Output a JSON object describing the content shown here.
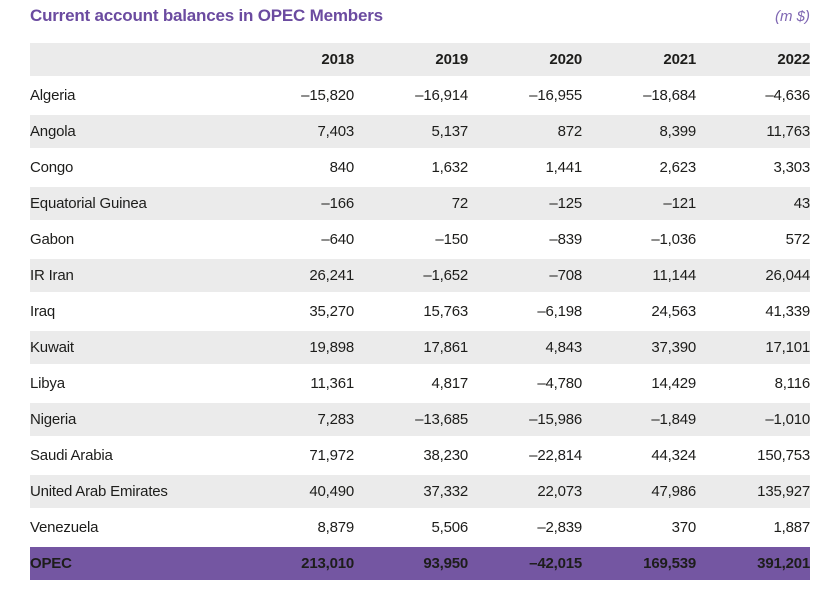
{
  "page": {
    "title": "Current account balances in OPEC Members",
    "unit_label": "(m $)"
  },
  "colors": {
    "title_purple": "#6b4ba0",
    "year_header_purple": "#5f4b96",
    "total_row_bg": "#7456a2",
    "stripe_gray": "#ebebeb",
    "body_text": "#1d1d1b"
  },
  "table": {
    "years": [
      "2018",
      "2019",
      "2020",
      "2021",
      "2022"
    ],
    "rows": [
      {
        "country": "Algeria",
        "values": [
          "–15,820",
          "–16,914",
          "–16,955",
          "–18,684",
          "–4,636"
        ]
      },
      {
        "country": "Angola",
        "values": [
          "7,403",
          "5,137",
          "872",
          "8,399",
          "11,763"
        ]
      },
      {
        "country": "Congo",
        "values": [
          "840",
          "1,632",
          "1,441",
          "2,623",
          "3,303"
        ]
      },
      {
        "country": "Equatorial Guinea",
        "values": [
          "–166",
          "72",
          "–125",
          "–121",
          "43"
        ]
      },
      {
        "country": "Gabon",
        "values": [
          "–640",
          "–150",
          "–839",
          "–1,036",
          "572"
        ]
      },
      {
        "country": "IR Iran",
        "values": [
          "26,241",
          "–1,652",
          "–708",
          "11,144",
          "26,044"
        ]
      },
      {
        "country": "Iraq",
        "values": [
          "35,270",
          "15,763",
          "–6,198",
          "24,563",
          "41,339"
        ]
      },
      {
        "country": "Kuwait",
        "values": [
          "19,898",
          "17,861",
          "4,843",
          "37,390",
          "17,101"
        ]
      },
      {
        "country": "Libya",
        "values": [
          "11,361",
          "4,817",
          "–4,780",
          "14,429",
          "8,116"
        ]
      },
      {
        "country": "Nigeria",
        "values": [
          "7,283",
          "–13,685",
          "–15,986",
          "–1,849",
          "–1,010"
        ]
      },
      {
        "country": "Saudi Arabia",
        "values": [
          "71,972",
          "38,230",
          "–22,814",
          "44,324",
          "150,753"
        ]
      },
      {
        "country": "United Arab Emirates",
        "values": [
          "40,490",
          "37,332",
          "22,073",
          "47,986",
          "135,927"
        ]
      },
      {
        "country": "Venezuela",
        "values": [
          "8,879",
          "5,506",
          "–2,839",
          "370",
          "1,887"
        ]
      }
    ],
    "total": {
      "label": "OPEC",
      "values": [
        "213,010",
        "93,950",
        "–42,015",
        "169,539",
        "391,201"
      ]
    }
  },
  "chart_data": {
    "type": "table",
    "title": "Current account balances in OPEC Members",
    "unit": "m $",
    "columns": [
      2018,
      2019,
      2020,
      2021,
      2022
    ],
    "rows": [
      {
        "name": "Algeria",
        "values": [
          -15820,
          -16914,
          -16955,
          -18684,
          -4636
        ]
      },
      {
        "name": "Angola",
        "values": [
          7403,
          5137,
          872,
          8399,
          11763
        ]
      },
      {
        "name": "Congo",
        "values": [
          840,
          1632,
          1441,
          2623,
          3303
        ]
      },
      {
        "name": "Equatorial Guinea",
        "values": [
          -166,
          72,
          -125,
          -121,
          43
        ]
      },
      {
        "name": "Gabon",
        "values": [
          -640,
          -150,
          -839,
          -1036,
          572
        ]
      },
      {
        "name": "IR Iran",
        "values": [
          26241,
          -1652,
          -708,
          11144,
          26044
        ]
      },
      {
        "name": "Iraq",
        "values": [
          35270,
          15763,
          -6198,
          24563,
          41339
        ]
      },
      {
        "name": "Kuwait",
        "values": [
          19898,
          17861,
          4843,
          37390,
          17101
        ]
      },
      {
        "name": "Libya",
        "values": [
          11361,
          4817,
          -4780,
          14429,
          8116
        ]
      },
      {
        "name": "Nigeria",
        "values": [
          7283,
          -13685,
          -15986,
          -1849,
          -1010
        ]
      },
      {
        "name": "Saudi Arabia",
        "values": [
          71972,
          38230,
          -22814,
          44324,
          150753
        ]
      },
      {
        "name": "United Arab Emirates",
        "values": [
          40490,
          37332,
          22073,
          47986,
          135927
        ]
      },
      {
        "name": "Venezuela",
        "values": [
          8879,
          5506,
          -2839,
          370,
          1887
        ]
      },
      {
        "name": "OPEC",
        "values": [
          213010,
          93950,
          -42015,
          169539,
          391201
        ]
      }
    ]
  }
}
